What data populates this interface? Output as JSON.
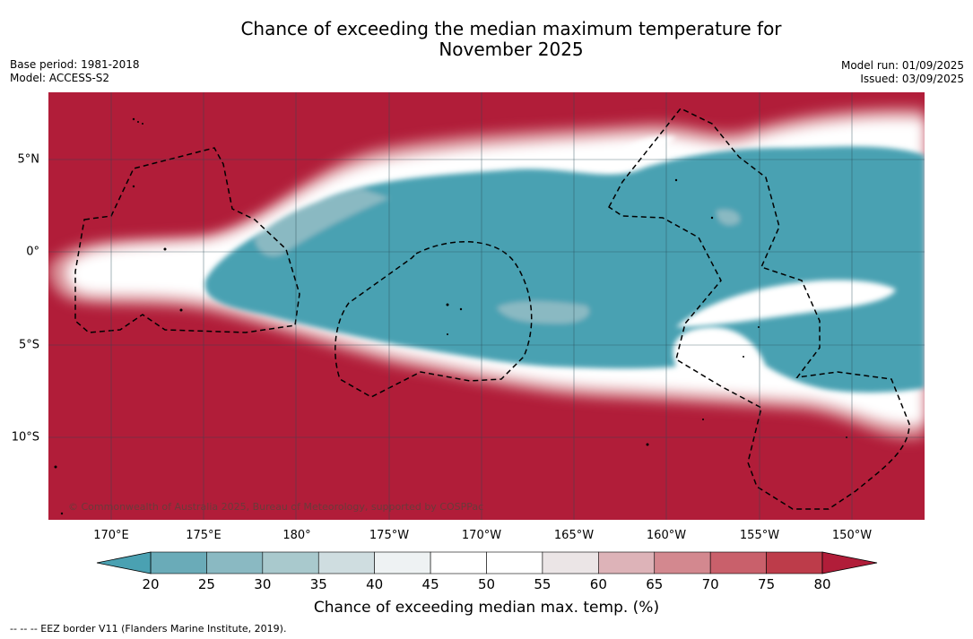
{
  "title_line1": "Chance of exceeding the median maximum temperature for",
  "title_line2": "November 2025",
  "base_period": "Base period: 1981-2018",
  "model": "Model: ACCESS-S2",
  "model_run": "Model run: 01/09/2025",
  "issued": "Issued: 03/09/2025",
  "lon_ticks": [
    "170°E",
    "175°E",
    "180°",
    "175°W",
    "170°W",
    "165°W",
    "160°W",
    "155°W",
    "150°W"
  ],
  "lat_ticks": [
    "5°N",
    "0°",
    "5°S",
    "10°S"
  ],
  "copyright": "© Commonwealth of Australia 2025, Bureau of Meteorology, supported by COSPPac",
  "colorbar": {
    "labels": [
      "20",
      "25",
      "30",
      "35",
      "40",
      "45",
      "50",
      "55",
      "60",
      "65",
      "70",
      "75",
      "80"
    ],
    "colors": [
      "#4aa1b2",
      "#6aabb8",
      "#8ab9c2",
      "#a9c9cd",
      "#cfdde0",
      "#eef2f3",
      "#ffffff",
      "#ffffff",
      "#ebe5e6",
      "#ddb3b8",
      "#d3888f",
      "#c9606b",
      "#bd3c4a",
      "#b11d39"
    ],
    "title": "Chance of exceeding median max. temp. (%)"
  },
  "footnote": "--  --  -- EEZ border V11 (Flanders Marine Institute, 2019).",
  "map_colors": {
    "warm": "#b11d39",
    "cool": "#4aa1b2"
  }
}
